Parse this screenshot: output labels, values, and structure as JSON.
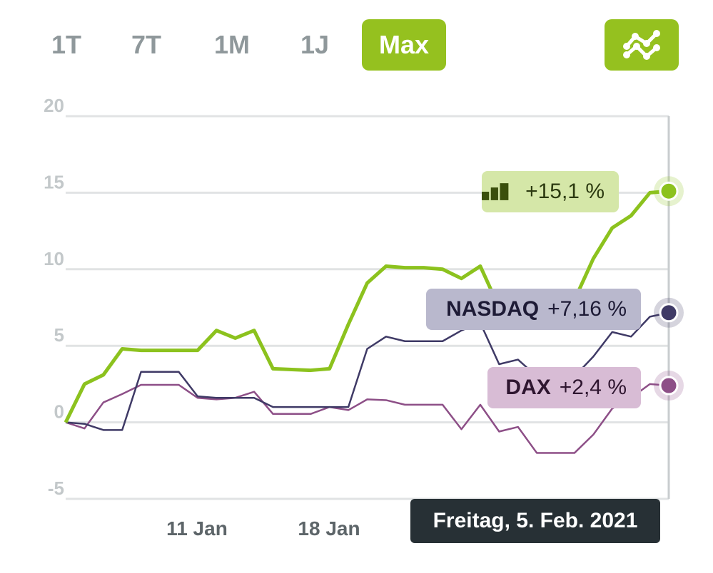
{
  "range_buttons": [
    {
      "label": "1T",
      "active": false
    },
    {
      "label": "7T",
      "active": false
    },
    {
      "label": "1M",
      "active": false
    },
    {
      "label": "1J",
      "active": false
    },
    {
      "label": "Max",
      "active": true
    }
  ],
  "chart_toggle_icon": "line-chart-icon",
  "colors": {
    "accent": "#95c11f",
    "portfolio": "#8cc21e",
    "nasdaq": "#3f3a66",
    "dax": "#8d4f87",
    "tooltip_bg": "#273035"
  },
  "tooltip": "Freitag, 5. Feb. 2021",
  "callouts": {
    "portfolio": {
      "icon": "bar-chart-icon",
      "value": "+15,1 %"
    },
    "nasdaq": {
      "name": "NASDAQ",
      "value": "+7,16 %"
    },
    "dax": {
      "name": "DAX",
      "value": "+2,4 %"
    }
  },
  "chart_data": {
    "type": "line",
    "ylim": [
      -5,
      20
    ],
    "yticks": [
      "20",
      "15",
      "10",
      "5",
      "0",
      "-5"
    ],
    "ytick_values": [
      20,
      15,
      10,
      5,
      0,
      -5
    ],
    "xticks": [
      {
        "label": "11 Jan",
        "index": 7
      },
      {
        "label": "18 Jan",
        "index": 14
      }
    ],
    "grid": true,
    "series": [
      {
        "key": "portfolio",
        "values": [
          0,
          2.5,
          3.1,
          4.8,
          4.7,
          4.7,
          4.7,
          4.7,
          6.0,
          5.5,
          6.0,
          3.5,
          3.45,
          3.4,
          3.5,
          6.4,
          9.1,
          10.2,
          10.1,
          10.1,
          10.0,
          9.4,
          10.2,
          7.5,
          7.2,
          7.0,
          7.3,
          8.0,
          10.7,
          12.7,
          13.5,
          15.0,
          15.1
        ]
      },
      {
        "name": "NASDAQ",
        "key": "nasdaq",
        "values": [
          0,
          -0.1,
          -0.5,
          -0.5,
          3.3,
          3.3,
          3.3,
          1.7,
          1.6,
          1.6,
          1.6,
          1.0,
          1.0,
          1.0,
          1.0,
          1.0,
          4.8,
          5.6,
          5.3,
          5.3,
          5.3,
          6.0,
          6.5,
          3.8,
          4.1,
          3.0,
          2.5,
          3.0,
          4.3,
          5.9,
          5.6,
          6.9,
          7.16
        ]
      },
      {
        "name": "DAX",
        "key": "dax",
        "values": [
          0,
          -0.4,
          1.3,
          1.85,
          2.45,
          2.45,
          2.45,
          1.6,
          1.5,
          1.6,
          2.0,
          0.55,
          0.55,
          0.55,
          1.0,
          0.8,
          1.5,
          1.45,
          1.15,
          1.15,
          1.15,
          -0.45,
          1.15,
          -0.6,
          -0.3,
          -2.0,
          -2.0,
          -2.0,
          -0.8,
          0.9,
          1.6,
          2.5,
          2.4
        ]
      }
    ]
  }
}
